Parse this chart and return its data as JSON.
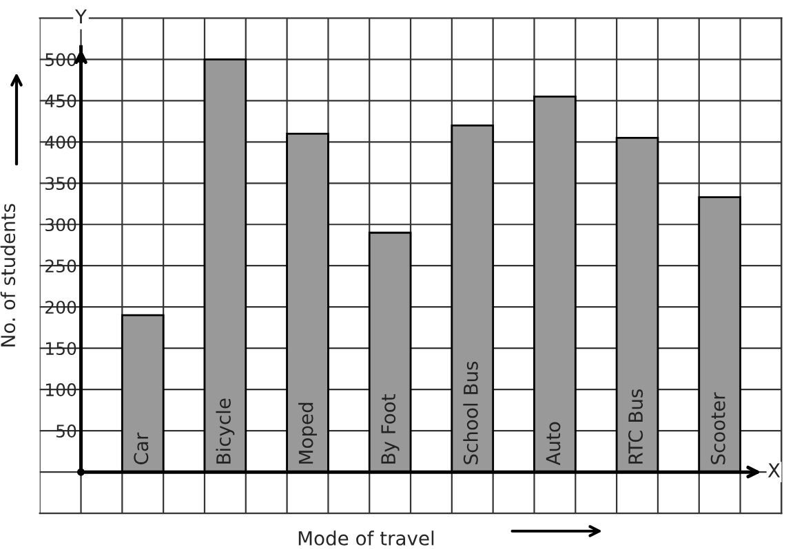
{
  "chart_data": {
    "type": "bar",
    "xlabel": "Mode of travel",
    "ylabel": "No. of students",
    "categories": [
      "Car",
      "Bicycle",
      "Moped",
      "By Foot",
      "School Bus",
      "Auto",
      "RTC Bus",
      "Scooter"
    ],
    "values": [
      190,
      500,
      410,
      290,
      420,
      455,
      405,
      333
    ],
    "color": "#999999",
    "ylim": [
      -50,
      550
    ],
    "yticks": [
      {
        "value": 0,
        "label": null
      },
      50,
      100,
      150,
      200,
      250,
      300,
      350,
      400,
      450,
      500
    ],
    "grid": true,
    "annotations": [
      "Y",
      "X"
    ]
  }
}
